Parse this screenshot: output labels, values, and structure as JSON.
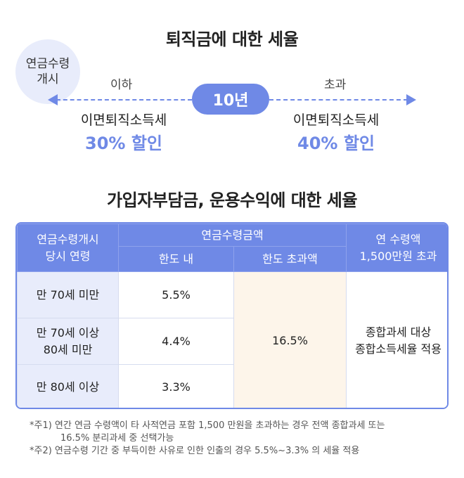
{
  "section1": {
    "title": "퇴직금에 대한 세율",
    "start_label_line1": "연금수령",
    "start_label_line2": "개시",
    "threshold": "10년",
    "left": {
      "side_label": "이하",
      "tax_name": "이면퇴직소득세",
      "discount": "30% 할인"
    },
    "right": {
      "side_label": "초과",
      "tax_name": "이면퇴직소득세",
      "discount": "40% 할인"
    }
  },
  "section2": {
    "title": "가입자부담금, 운용수익에 대한 세율",
    "table": {
      "col1_header_line1": "연금수령개시",
      "col1_header_line2": "당시 연령",
      "group_header": "연금수령금액",
      "sub_header_within": "한도 내",
      "sub_header_over": "한도 초과액",
      "col4_header_line1": "연 수령액",
      "col4_header_line2": "1,500만원 초과",
      "rows": [
        {
          "age_line1": "만 70세 미만",
          "age_line2": "",
          "rate": "5.5%"
        },
        {
          "age_line1": "만 70세 이상",
          "age_line2": "80세 미만",
          "rate": "4.4%"
        },
        {
          "age_line1": "만 80세 이상",
          "age_line2": "",
          "rate": "3.3%"
        }
      ],
      "over_limit_rate": "16.5%",
      "annual_over_line1": "종합과세 대상",
      "annual_over_line2": "종합소득세율 적용"
    }
  },
  "notes": {
    "note1_line1": "*주1) 연간 연금 수령액이 타 사적연금 포함 1,500 만원을 초과하는 경우 전액 종합과세 또는",
    "note1_line2": "16.5% 분리과세 중 선택가능",
    "note2": "*주2) 연금수령 기간 중 부득이한 사유로 인한 인출의 경우 5.5%~3.3% 의 세율 적용"
  },
  "colors": {
    "accent": "#6f89e6",
    "light_accent": "#e8ecfb",
    "highlight": "#fdf5ea"
  }
}
